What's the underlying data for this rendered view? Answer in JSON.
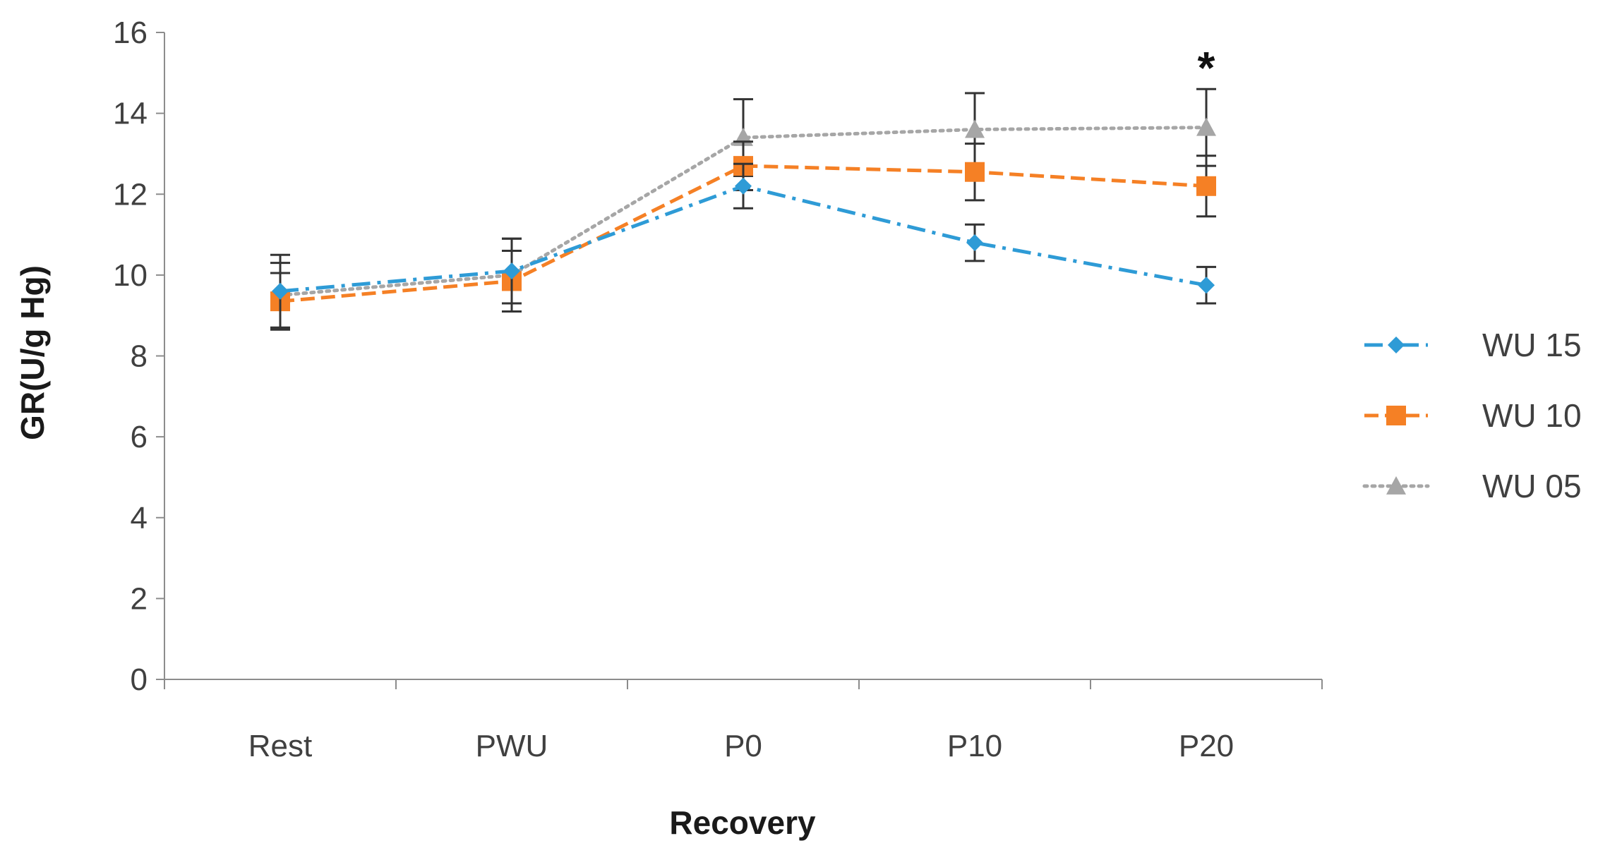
{
  "chart_data": {
    "type": "line",
    "title": "",
    "xlabel": "Recovery",
    "ylabel": "GR(U/g Hg)",
    "ylim": [
      0,
      16
    ],
    "yticks": [
      0,
      2,
      4,
      6,
      8,
      10,
      12,
      14,
      16
    ],
    "ytick_labels": [
      "0",
      "2",
      "4",
      "6",
      "8",
      "10",
      "12",
      "14",
      "16"
    ],
    "categories": [
      "Rest",
      "PWU",
      "P0",
      "P10",
      "P20"
    ],
    "legend_position": "right",
    "series": [
      {
        "name": "WU 15",
        "color": "#2E9BD6",
        "marker": "diamond",
        "line_style": "dash-dot",
        "values": [
          9.6,
          10.1,
          12.2,
          10.8,
          9.75
        ],
        "errors": [
          0.9,
          0.8,
          0.55,
          0.45,
          0.45
        ]
      },
      {
        "name": "WU 10",
        "color": "#F58025",
        "marker": "square",
        "line_style": "dashed",
        "values": [
          9.35,
          9.85,
          12.7,
          12.55,
          12.2
        ],
        "errors": [
          0.7,
          0.75,
          0.6,
          0.7,
          0.75
        ]
      },
      {
        "name": "WU 05",
        "color": "#A6A6A6",
        "marker": "triangle",
        "line_style": "dotted",
        "values": [
          9.5,
          10.0,
          13.4,
          13.6,
          13.65
        ],
        "errors": [
          0.8,
          0.9,
          0.95,
          0.9,
          0.95
        ]
      }
    ],
    "annotations": [
      {
        "text": "*",
        "category": "P20"
      }
    ]
  }
}
